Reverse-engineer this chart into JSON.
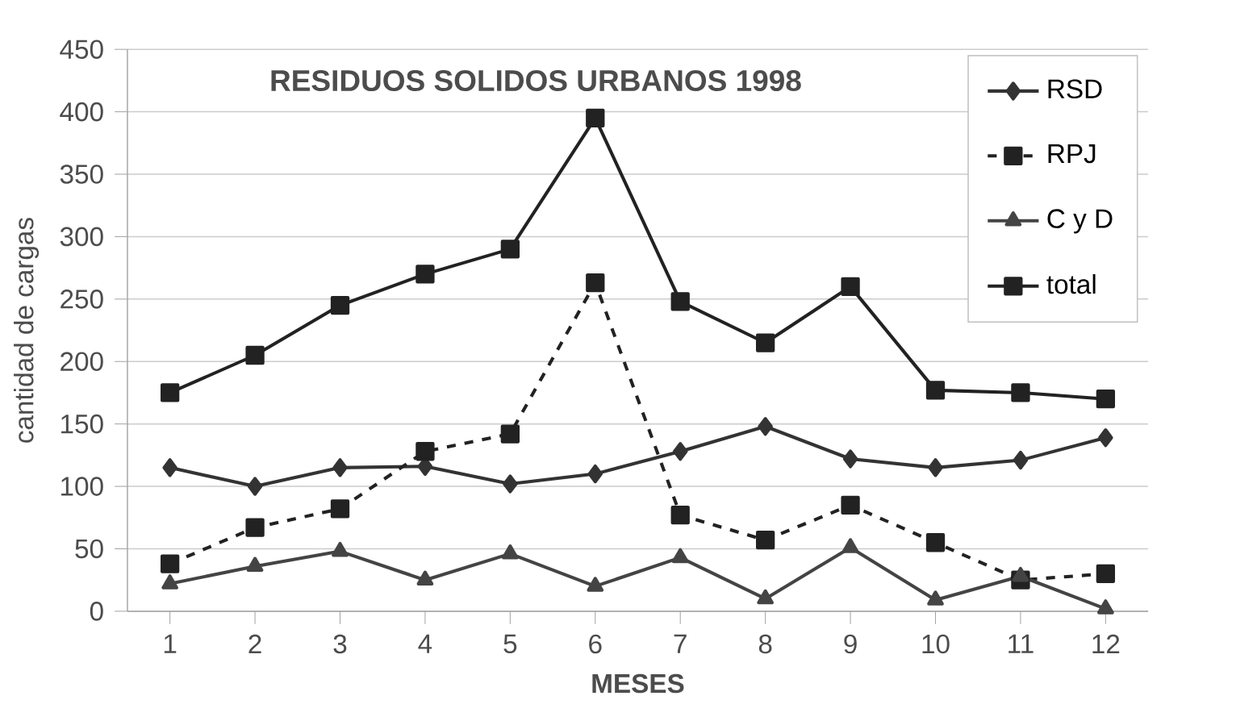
{
  "chart_data": {
    "type": "line",
    "title": "RESIDUOS SOLIDOS URBANOS 1998",
    "xlabel": "MESES",
    "ylabel": "cantidad de cargas",
    "categories": [
      "1",
      "2",
      "3",
      "4",
      "5",
      "6",
      "7",
      "8",
      "9",
      "10",
      "11",
      "12"
    ],
    "ylim": [
      0,
      450
    ],
    "yticks": [
      0,
      50,
      100,
      150,
      200,
      250,
      300,
      350,
      400,
      450
    ],
    "grid": "y",
    "legend": "top right",
    "series": [
      {
        "name": "RSD",
        "color": "#333333",
        "marker": "diamond",
        "line_style": "solid",
        "values": [
          115,
          100,
          115,
          116,
          102,
          110,
          128,
          148,
          122,
          115,
          121,
          139
        ]
      },
      {
        "name": "RPJ",
        "color": "#222222",
        "marker": "square",
        "line_style": "dashed",
        "values": [
          38,
          67,
          82,
          128,
          142,
          263,
          77,
          57,
          85,
          55,
          25,
          30
        ]
      },
      {
        "name": "C y D",
        "color": "#444444",
        "marker": "triangle",
        "line_style": "solid",
        "values": [
          22,
          36,
          48,
          25,
          46,
          20,
          43,
          10,
          51,
          9,
          28,
          2
        ]
      },
      {
        "name": "total",
        "color": "#222222",
        "marker": "square",
        "line_style": "solid",
        "values": [
          175,
          205,
          245,
          270,
          290,
          395,
          248,
          215,
          260,
          177,
          175,
          170
        ]
      }
    ]
  }
}
